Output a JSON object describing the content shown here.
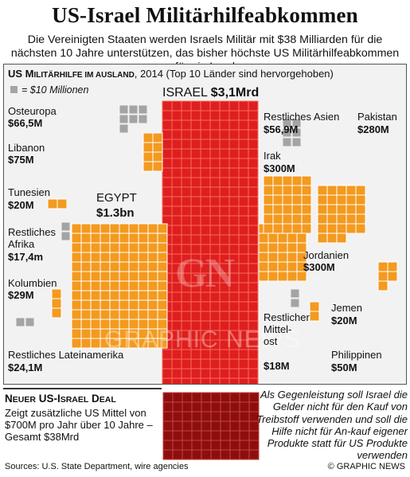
{
  "title": "US-Israel Militärhilfeabkommen",
  "subtitle": "Die Vereinigten Staaten werden Israels Militär mit $38 Milliarden für die nächsten 10 Jahre unterstützen, das bisher höchste US Militärhilfeabkommen für ein Land",
  "panel": {
    "heading_prefix": "US M",
    "heading_sc": "ILITÄRHILFE IM AUSLAND",
    "heading_suffix": ", 2014 (Top 10 Länder sind hervorgehoben)",
    "legend_text": "= $10 Millionen"
  },
  "labels": {
    "israel_name": "ISRAEL",
    "israel_value": "$3,1Mrd",
    "egypt_name": "EGYPT",
    "egypt_value": "$1.3bn",
    "osteuropa_name": "Osteuropa",
    "osteuropa_value": "$66,5M",
    "libanon_name": "Libanon",
    "libanon_value": "$75M",
    "tunesien_name": "Tunesien",
    "tunesien_value": "$20M",
    "afrika_name1": "Restliches",
    "afrika_name2": "Afrika",
    "afrika_value": "$17,4m",
    "kolumbien_name": "Kolumbien",
    "kolumbien_value": "$29M",
    "latein_name": "Restliches Lateinamerika",
    "latein_value": "$24,1M",
    "asien_name": "Restliches Asien",
    "asien_value": "$56,9M",
    "pakistan_name": "Pakistan",
    "pakistan_value": "$280M",
    "irak_name": "Irak",
    "irak_value": "$300M",
    "jordanien_name": "Jordanien",
    "jordanien_value": "$300M",
    "jemen_name": "Jemen",
    "jemen_value": "$20M",
    "mittelost_name1": "Restlicher",
    "mittelost_name2": "Mittel-",
    "mittelost_name3": "ost",
    "mittelost_value": "$18M",
    "philippinen_name": "Philippinen",
    "philippinen_value": "$50M"
  },
  "deal": {
    "title_prefix": "N",
    "title_sc": "EUER",
    "title_mid": " US-I",
    "title_sc2": "SRAEL",
    "title_suffix": " D",
    "title_sc3": "EAL",
    "body": "Zeigt zusätzliche US Mittel von $700M pro Jahr über 10 Jahre – Gesamt $38Mrd"
  },
  "quote": "Als Gegenleistung soll Israel die Gelder nicht für den Kauf von Treibstoff  verwenden und soll die Hilfe nicht für An-kauf eigener Produkte statt für US Produkte verwenden",
  "footer": {
    "sources": "Sources: U.S. State Department, wire agencies",
    "credit": "© GRAPHIC NEWS"
  },
  "watermark": {
    "logo": "GN",
    "text": "GRAPHIC NEWS"
  },
  "colors": {
    "israel": "#dd1f1f",
    "israel_grid": "#ff6a5a",
    "deal": "#8e0e0e",
    "deal_grid": "#c0463f",
    "top10": "#f39a1f",
    "top10_grid": "#ffffff",
    "other": "#a4a4a4",
    "panel_bg": "#f2f2f2"
  },
  "chart_data": {
    "type": "unit",
    "unit_value": 10,
    "unit_label": "$10 Millionen",
    "title": "US Militärhilfe im Ausland, 2014 (Top 10 Länder sind hervorgehoben)",
    "series": [
      {
        "name": "ISRAEL",
        "value": 3100,
        "highlight": true
      },
      {
        "name": "EGYPT",
        "value": 1300,
        "highlight": true
      },
      {
        "name": "Irak",
        "value": 300,
        "highlight": true
      },
      {
        "name": "Jordanien",
        "value": 300,
        "highlight": true
      },
      {
        "name": "Pakistan",
        "value": 280,
        "highlight": true
      },
      {
        "name": "Libanon",
        "value": 75,
        "highlight": true
      },
      {
        "name": "Osteuropa",
        "value": 66.5,
        "highlight": false
      },
      {
        "name": "Restliches Asien",
        "value": 56.9,
        "highlight": false
      },
      {
        "name": "Philippinen",
        "value": 50,
        "highlight": true
      },
      {
        "name": "Kolumbien",
        "value": 29,
        "highlight": true
      },
      {
        "name": "Restliches Lateinamerika",
        "value": 24.1,
        "highlight": false
      },
      {
        "name": "Tunesien",
        "value": 20,
        "highlight": true
      },
      {
        "name": "Jemen",
        "value": 20,
        "highlight": true
      },
      {
        "name": "Restlicher Mittelost",
        "value": 18,
        "highlight": false
      },
      {
        "name": "Restliches Afrika",
        "value": 17.4,
        "highlight": false
      },
      {
        "name": "Neuer US-Israel Deal (zusätzlich pro Jahr)",
        "value": 700,
        "highlight": false
      }
    ]
  }
}
